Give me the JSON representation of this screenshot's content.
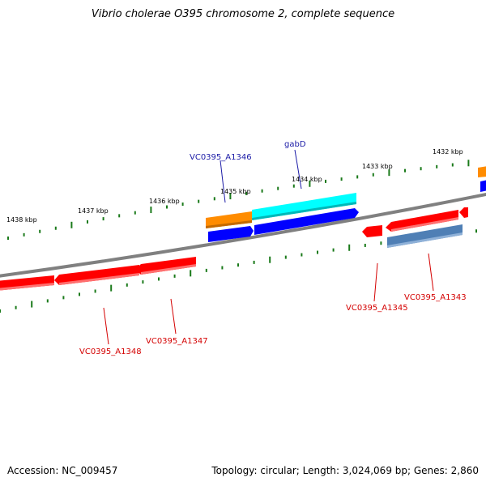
{
  "title": "Vibrio cholerae O395 chromosome 2, complete sequence",
  "accession": "Accession: NC_009457",
  "summary": "Topology: circular; Length: 3,024,069 bp; Genes: 2,860",
  "tick_labels": [
    "1432 kbp",
    "1433 kbp",
    "1434 kbp",
    "1435 kbp",
    "1436 kbp",
    "1437 kbp",
    "1438 kbp"
  ],
  "gene_labels": {
    "gabD": "gabD",
    "VC0395_A1346": "VC0395_A1346",
    "VC0395_A1345": "VC0395_A1345",
    "VC0395_A1343": "VC0395_A1343",
    "VC0395_A1347": "VC0395_A1347",
    "VC0395_A1348": "VC0395_A1348"
  },
  "colors": {
    "backbone": "#808080",
    "tick": "#1a7a1a",
    "forward_red": "#ff0000",
    "orange": "#ff8c00",
    "cyan": "#00ffff",
    "blue": "#0000ff",
    "steelblue": "#4f7fb5",
    "label_blue": "#1a1aa6",
    "label_red": "#d40000"
  }
}
